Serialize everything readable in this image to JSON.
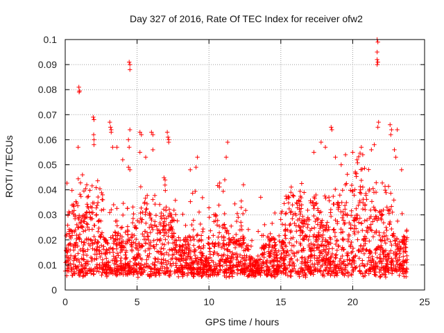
{
  "chart_data": {
    "type": "scatter",
    "title": "Day 327 of 2016, Rate Of TEC Index for receiver ofw2",
    "xlabel": "GPS time / hours",
    "ylabel": "ROTI / TECUs",
    "xlim": [
      0,
      25
    ],
    "ylim": [
      0,
      0.1
    ],
    "xticks": [
      0,
      5,
      10,
      15,
      20,
      25
    ],
    "xtick_labels": [
      "0",
      "5",
      "10",
      "15",
      "20",
      "25"
    ],
    "yticks": [
      0,
      0.01,
      0.02,
      0.03,
      0.04,
      0.05,
      0.06,
      0.07,
      0.08,
      0.09,
      0.1
    ],
    "ytick_labels": [
      "0",
      "0.01",
      "0.02",
      "0.03",
      "0.04",
      "0.05",
      "0.06",
      "0.07",
      "0.08",
      "0.09",
      "0.1"
    ],
    "grid": true,
    "marker": "+",
    "series_color": "#ff0000",
    "x_data_range": [
      0,
      23.8
    ],
    "baseline_band": [
      0.005,
      0.035
    ],
    "outliers": [
      {
        "x": 0.95,
        "y": 0.081
      },
      {
        "x": 0.97,
        "y": 0.079
      },
      {
        "x": 1.0,
        "y": 0.0795
      },
      {
        "x": 0.9,
        "y": 0.057
      },
      {
        "x": 1.2,
        "y": 0.046
      },
      {
        "x": 1.5,
        "y": 0.042
      },
      {
        "x": 1.95,
        "y": 0.069
      },
      {
        "x": 2.0,
        "y": 0.068
      },
      {
        "x": 1.98,
        "y": 0.062
      },
      {
        "x": 2.0,
        "y": 0.06
      },
      {
        "x": 2.0,
        "y": 0.058
      },
      {
        "x": 3.1,
        "y": 0.067
      },
      {
        "x": 3.15,
        "y": 0.065
      },
      {
        "x": 3.2,
        "y": 0.064
      },
      {
        "x": 3.2,
        "y": 0.063
      },
      {
        "x": 3.3,
        "y": 0.057
      },
      {
        "x": 3.6,
        "y": 0.057
      },
      {
        "x": 4.0,
        "y": 0.052
      },
      {
        "x": 4.45,
        "y": 0.091
      },
      {
        "x": 4.5,
        "y": 0.09
      },
      {
        "x": 4.5,
        "y": 0.088
      },
      {
        "x": 4.5,
        "y": 0.064
      },
      {
        "x": 4.4,
        "y": 0.06
      },
      {
        "x": 4.45,
        "y": 0.057
      },
      {
        "x": 4.4,
        "y": 0.049
      },
      {
        "x": 4.5,
        "y": 0.048
      },
      {
        "x": 5.2,
        "y": 0.063
      },
      {
        "x": 5.3,
        "y": 0.062
      },
      {
        "x": 5.2,
        "y": 0.055
      },
      {
        "x": 6.0,
        "y": 0.063
      },
      {
        "x": 6.1,
        "y": 0.062
      },
      {
        "x": 6.1,
        "y": 0.056
      },
      {
        "x": 5.6,
        "y": 0.053
      },
      {
        "x": 7.1,
        "y": 0.063
      },
      {
        "x": 7.15,
        "y": 0.061
      },
      {
        "x": 7.2,
        "y": 0.06
      },
      {
        "x": 7.2,
        "y": 0.059
      },
      {
        "x": 8.7,
        "y": 0.048
      },
      {
        "x": 9.1,
        "y": 0.049
      },
      {
        "x": 9.2,
        "y": 0.053
      },
      {
        "x": 11.3,
        "y": 0.059
      },
      {
        "x": 11.2,
        "y": 0.053
      },
      {
        "x": 11.1,
        "y": 0.044
      },
      {
        "x": 12.4,
        "y": 0.042
      },
      {
        "x": 13.6,
        "y": 0.037
      },
      {
        "x": 17.3,
        "y": 0.055
      },
      {
        "x": 17.8,
        "y": 0.059
      },
      {
        "x": 18.1,
        "y": 0.057
      },
      {
        "x": 18.5,
        "y": 0.065
      },
      {
        "x": 18.55,
        "y": 0.064
      },
      {
        "x": 18.8,
        "y": 0.053
      },
      {
        "x": 19.2,
        "y": 0.05
      },
      {
        "x": 19.5,
        "y": 0.054
      },
      {
        "x": 20.0,
        "y": 0.055
      },
      {
        "x": 20.3,
        "y": 0.052
      },
      {
        "x": 20.6,
        "y": 0.057
      },
      {
        "x": 20.7,
        "y": 0.054
      },
      {
        "x": 21.3,
        "y": 0.056
      },
      {
        "x": 21.5,
        "y": 0.058
      },
      {
        "x": 21.7,
        "y": 0.1
      },
      {
        "x": 21.75,
        "y": 0.099
      },
      {
        "x": 21.7,
        "y": 0.095
      },
      {
        "x": 21.7,
        "y": 0.092
      },
      {
        "x": 21.75,
        "y": 0.091
      },
      {
        "x": 21.7,
        "y": 0.09
      },
      {
        "x": 21.8,
        "y": 0.067
      },
      {
        "x": 21.75,
        "y": 0.065
      },
      {
        "x": 22.6,
        "y": 0.066
      },
      {
        "x": 22.7,
        "y": 0.064
      },
      {
        "x": 22.65,
        "y": 0.062
      },
      {
        "x": 23.1,
        "y": 0.064
      },
      {
        "x": 22.9,
        "y": 0.056
      },
      {
        "x": 23.0,
        "y": 0.053
      },
      {
        "x": 23.4,
        "y": 0.048
      }
    ]
  }
}
